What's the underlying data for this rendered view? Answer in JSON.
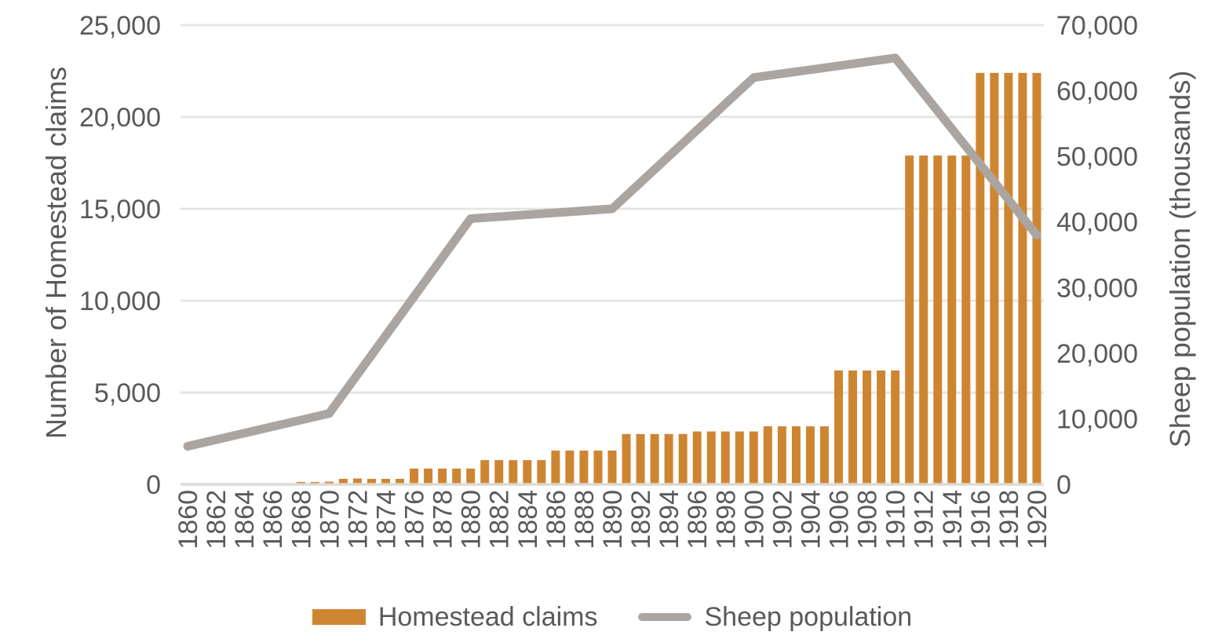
{
  "chart_data": {
    "type": "bar",
    "subtype": "combo-bar-line-dual-axis",
    "categories": [
      1860,
      1861,
      1862,
      1863,
      1864,
      1865,
      1866,
      1867,
      1868,
      1869,
      1870,
      1871,
      1872,
      1873,
      1874,
      1875,
      1876,
      1877,
      1878,
      1879,
      1880,
      1881,
      1882,
      1883,
      1884,
      1885,
      1886,
      1887,
      1888,
      1889,
      1890,
      1891,
      1892,
      1893,
      1894,
      1895,
      1896,
      1897,
      1898,
      1899,
      1900,
      1901,
      1902,
      1903,
      1904,
      1905,
      1906,
      1907,
      1908,
      1909,
      1910,
      1911,
      1912,
      1913,
      1914,
      1915,
      1916,
      1917,
      1918,
      1919,
      1920
    ],
    "series": [
      {
        "name": "Homestead claims",
        "type": "bar",
        "axis": "left",
        "color": "#CE8532",
        "values": [
          0,
          0,
          0,
          0,
          0,
          0,
          0,
          0,
          130,
          130,
          150,
          300,
          320,
          300,
          300,
          300,
          860,
          860,
          860,
          860,
          860,
          1320,
          1320,
          1320,
          1320,
          1320,
          1840,
          1840,
          1840,
          1840,
          1840,
          2740,
          2740,
          2740,
          2740,
          2740,
          2880,
          2880,
          2880,
          2880,
          2880,
          3160,
          3160,
          3160,
          3160,
          3160,
          6200,
          6200,
          6200,
          6200,
          6200,
          17900,
          17900,
          17900,
          17900,
          17900,
          22400,
          22400,
          22400,
          22400,
          22400
        ]
      },
      {
        "name": "Sheep population",
        "type": "line",
        "axis": "right",
        "color": "#ABA5A1",
        "x": [
          1860,
          1870,
          1880,
          1890,
          1900,
          1910,
          1920
        ],
        "values": [
          5800,
          10800,
          40500,
          42000,
          62000,
          65000,
          38000
        ]
      }
    ],
    "left_axis": {
      "title": "Number of Homestead claims",
      "min": 0,
      "max": 25000,
      "tick_step": 5000,
      "tick_labels": [
        "0",
        "5,000",
        "10,000",
        "15,000",
        "20,000",
        "25,000"
      ]
    },
    "right_axis": {
      "title": "Sheep population (thousands)",
      "min": 0,
      "max": 70000,
      "tick_step": 10000,
      "tick_labels": [
        "0",
        "10,000",
        "20,000",
        "30,000",
        "40,000",
        "50,000",
        "60,000",
        "70,000"
      ]
    },
    "x_axis": {
      "label_every": 2,
      "tick_labels": [
        "1860",
        "1862",
        "1864",
        "1866",
        "1868",
        "1870",
        "1872",
        "1874",
        "1876",
        "1878",
        "1880",
        "1882",
        "1884",
        "1886",
        "1888",
        "1890",
        "1892",
        "1894",
        "1896",
        "1898",
        "1900",
        "1902",
        "1904",
        "1906",
        "1908",
        "1910",
        "1912",
        "1914",
        "1916",
        "1918",
        "1920"
      ]
    },
    "legend_position": "bottom",
    "grid": true
  },
  "legend": {
    "homestead_label": "Homestead claims",
    "sheep_label": "Sheep population"
  },
  "colors": {
    "bar_orange": "#CE8532",
    "line_gray": "#ABA5A1",
    "text_gray": "#595959",
    "gridline": "#E7E5E2",
    "baseline": "#DEDBD8",
    "background": "#FFFFFF"
  }
}
